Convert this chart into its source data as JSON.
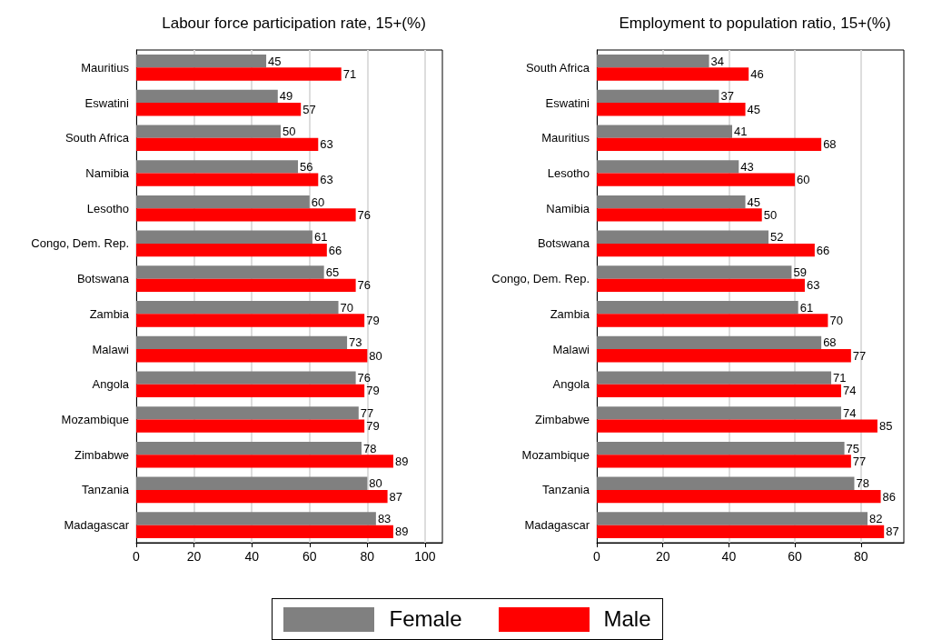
{
  "chart_data": [
    {
      "type": "bar",
      "orientation": "horizontal",
      "title": "Labour force participation rate, 15+(%)",
      "categories": [
        "Mauritius",
        "Eswatini",
        "South Africa",
        "Namibia",
        "Lesotho",
        "Congo, Dem. Rep.",
        "Botswana",
        "Zambia",
        "Malawi",
        "Angola",
        "Mozambique",
        "Zimbabwe",
        "Tanzania",
        "Madagascar"
      ],
      "series": [
        {
          "name": "Female",
          "color": "#808080",
          "values": [
            45,
            49,
            50,
            56,
            60,
            61,
            65,
            70,
            73,
            76,
            77,
            78,
            80,
            83
          ]
        },
        {
          "name": "Male",
          "color": "#ff0000",
          "values": [
            71,
            57,
            63,
            63,
            76,
            66,
            76,
            79,
            80,
            79,
            79,
            89,
            87,
            89
          ]
        }
      ],
      "xlim": [
        0,
        106
      ],
      "xticks": [
        0,
        20,
        40,
        60,
        80,
        100
      ],
      "grid": "x",
      "data_labels": true,
      "legend": "bottom"
    },
    {
      "type": "bar",
      "orientation": "horizontal",
      "title": "Employment to population ratio, 15+(%)",
      "categories": [
        "South Africa",
        "Eswatini",
        "Mauritius",
        "Lesotho",
        "Namibia",
        "Botswana",
        "Congo, Dem. Rep.",
        "Zambia",
        "Malawi",
        "Angola",
        "Zimbabwe",
        "Mozambique",
        "Tanzania",
        "Madagascar"
      ],
      "series": [
        {
          "name": "Female",
          "color": "#808080",
          "values": [
            34,
            37,
            41,
            43,
            45,
            52,
            59,
            61,
            68,
            71,
            74,
            75,
            78,
            82
          ]
        },
        {
          "name": "Male",
          "color": "#ff0000",
          "values": [
            46,
            45,
            68,
            60,
            50,
            66,
            63,
            70,
            77,
            74,
            85,
            77,
            86,
            87
          ]
        }
      ],
      "xlim": [
        0,
        93
      ],
      "xticks": [
        0,
        20,
        40,
        60,
        80
      ],
      "grid": "x",
      "data_labels": true
    }
  ]
}
